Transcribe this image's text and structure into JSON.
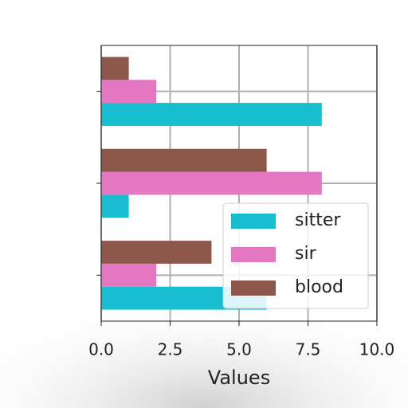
{
  "chart_data": {
    "type": "barh",
    "categories": [
      null,
      null,
      null
    ],
    "series": [
      {
        "name": "sitter",
        "color": "#17becf",
        "values": [
          6,
          1,
          8
        ]
      },
      {
        "name": "sir",
        "color": "#e377c2",
        "values": [
          2,
          8,
          2
        ]
      },
      {
        "name": "blood",
        "color": "#8c564b",
        "values": [
          4,
          6,
          1
        ]
      }
    ],
    "xlabel": "Values",
    "xlim": [
      0,
      10
    ],
    "xticks": [
      {
        "value": 0,
        "label": "0.0"
      },
      {
        "value": 2.5,
        "label": "2.5"
      },
      {
        "value": 5,
        "label": "5.0"
      },
      {
        "value": 7.5,
        "label": "7.5"
      },
      {
        "value": 10,
        "label": "10.0"
      }
    ],
    "grid": true,
    "legend": "lower right"
  }
}
